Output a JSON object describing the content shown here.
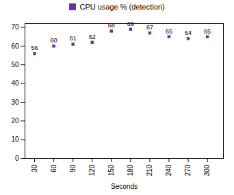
{
  "chart_data": {
    "type": "scatter",
    "x": [
      30,
      60,
      90,
      120,
      150,
      180,
      210,
      240,
      270,
      300
    ],
    "series": [
      {
        "name": "CPU usage % (detection)",
        "color": "#7030A0",
        "marker": "square",
        "values": [
          56,
          60,
          61,
          62,
          68,
          69,
          67,
          65,
          64,
          65
        ]
      }
    ],
    "x_label": "Seconds",
    "xlim": [
      15,
      325
    ],
    "xticks": [
      30,
      60,
      90,
      120,
      150,
      180,
      210,
      240,
      270,
      300
    ],
    "ylim": [
      0,
      72
    ],
    "yticks": [
      0,
      10,
      20,
      30,
      40,
      50,
      60,
      70
    ],
    "data_labels": true,
    "legend": "top",
    "grid": false
  }
}
